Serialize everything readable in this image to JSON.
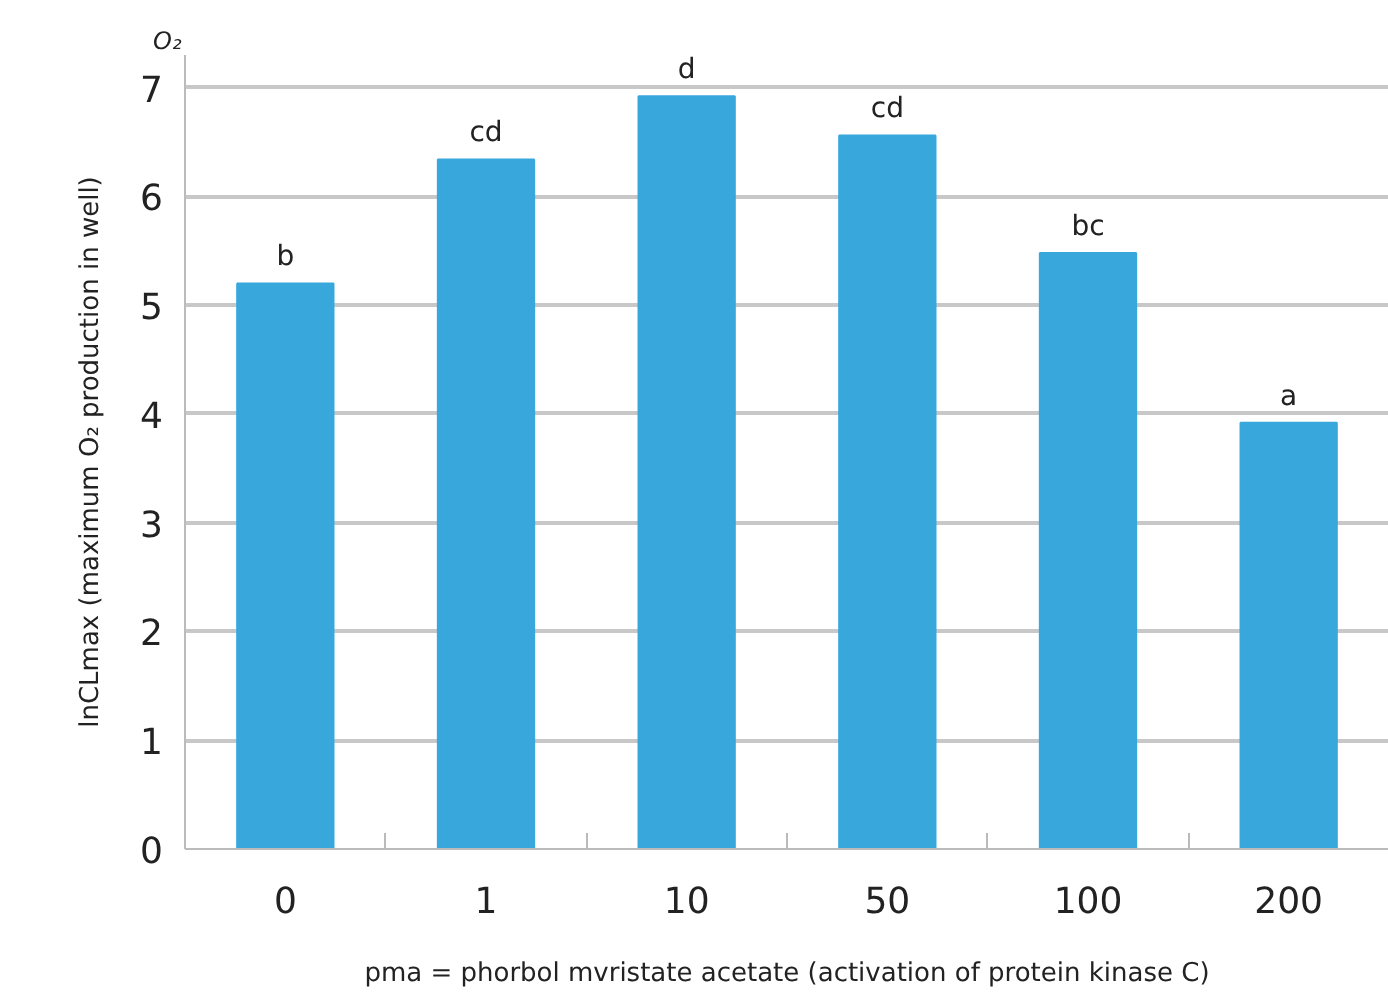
{
  "chart_data": {
    "type": "bar",
    "xlabel": "pma = phorbol mvristate acetate (activation of protein kinase C)",
    "ylabel": "lnCLmax (maximum O₂ production in well)",
    "categories": [
      "0",
      "1",
      "10",
      "50",
      "100",
      "200"
    ],
    "values": [
      5.2,
      6.34,
      6.92,
      6.56,
      5.48,
      3.92
    ],
    "color": "#38a8dc",
    "ylim": [
      0,
      7.3
    ],
    "yticks": [
      0,
      1,
      2,
      3,
      4,
      5,
      6,
      7
    ],
    "grid": "y",
    "annotations": [
      "O₂",
      {
        "text": "b",
        "x": "0",
        "y": 5.2
      },
      {
        "text": "cd",
        "x": "1",
        "y": 6.34
      },
      {
        "text": "d",
        "x": "10",
        "y": 6.92
      },
      {
        "text": "cd",
        "x": "50",
        "y": 6.56
      },
      {
        "text": "bc",
        "x": "100",
        "y": 5.48
      },
      {
        "text": "a",
        "x": "200",
        "y": 3.92
      }
    ]
  }
}
